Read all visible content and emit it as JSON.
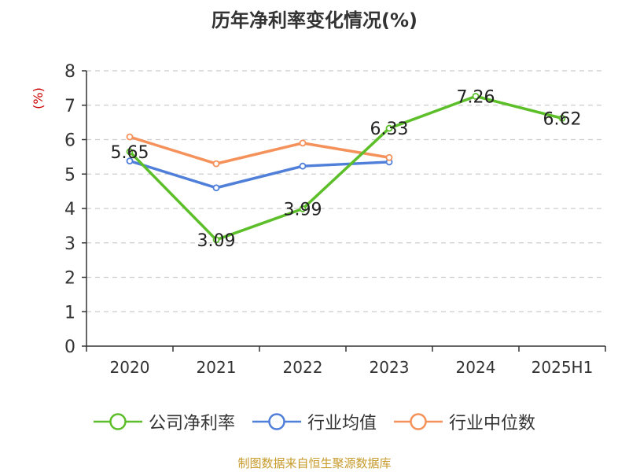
{
  "title": "历年净利率变化情况(%)",
  "source": "制图数据来自恒生聚源数据库",
  "colors": {
    "axis": "#333333",
    "grid": "#cccccc",
    "ylabel": "#cc0000"
  },
  "chart_data": {
    "type": "line",
    "title": "历年净利率变化情况(%)",
    "ylabel": "(%)",
    "ylim": [
      0,
      8
    ],
    "yticks": [
      0,
      1,
      2,
      3,
      4,
      5,
      6,
      7,
      8
    ],
    "categories": [
      "2020",
      "2021",
      "2022",
      "2023",
      "2024",
      "2025H1"
    ],
    "grid": true,
    "legend_position": "bottom",
    "series": [
      {
        "name": "公司净利率",
        "color": "#5cbf2a",
        "values": [
          5.65,
          3.09,
          3.99,
          6.33,
          7.26,
          6.62
        ],
        "labels": [
          "5.65",
          "3.09",
          "3.99",
          "6.33",
          "7.26",
          "6.62"
        ]
      },
      {
        "name": "行业均值",
        "color": "#4f7fd9",
        "values": [
          5.38,
          4.6,
          5.23,
          5.35,
          null,
          null
        ]
      },
      {
        "name": "行业中位数",
        "color": "#f5915a",
        "values": [
          6.08,
          5.3,
          5.9,
          5.48,
          null,
          null
        ]
      }
    ]
  }
}
